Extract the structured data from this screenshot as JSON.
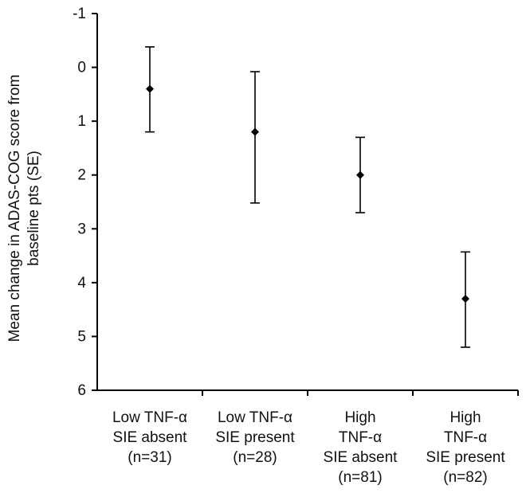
{
  "chart_data": {
    "type": "scatter",
    "title": "",
    "ylabel_lines": [
      "Mean change in ADAS-COG score from",
      "baseline pts (SE)"
    ],
    "xlabel": "",
    "y_axis_inverted": true,
    "ylim": [
      6,
      -1
    ],
    "yticks": [
      "-1",
      "0",
      "1",
      "2",
      "3",
      "4",
      "5",
      "6"
    ],
    "grid": false,
    "legend": "none",
    "categories": [
      [
        "Low TNF-α",
        "SIE absent",
        "(n=31)"
      ],
      [
        "Low TNF-α",
        "SIE present",
        "(n=28)"
      ],
      [
        "High",
        "TNF-α",
        "SIE absent",
        "(n=81)"
      ],
      [
        "High",
        "TNF-α",
        "SIE present",
        "(n=82)"
      ]
    ],
    "series": [
      {
        "values": [
          0.4,
          1.2,
          2.0,
          4.3
        ],
        "error_low": [
          1.2,
          2.52,
          2.7,
          5.2
        ],
        "error_high": [
          -0.38,
          0.08,
          1.3,
          3.43
        ]
      }
    ],
    "colors": {
      "marker": "#000000",
      "axis": "#000000",
      "text": "#111111"
    }
  }
}
